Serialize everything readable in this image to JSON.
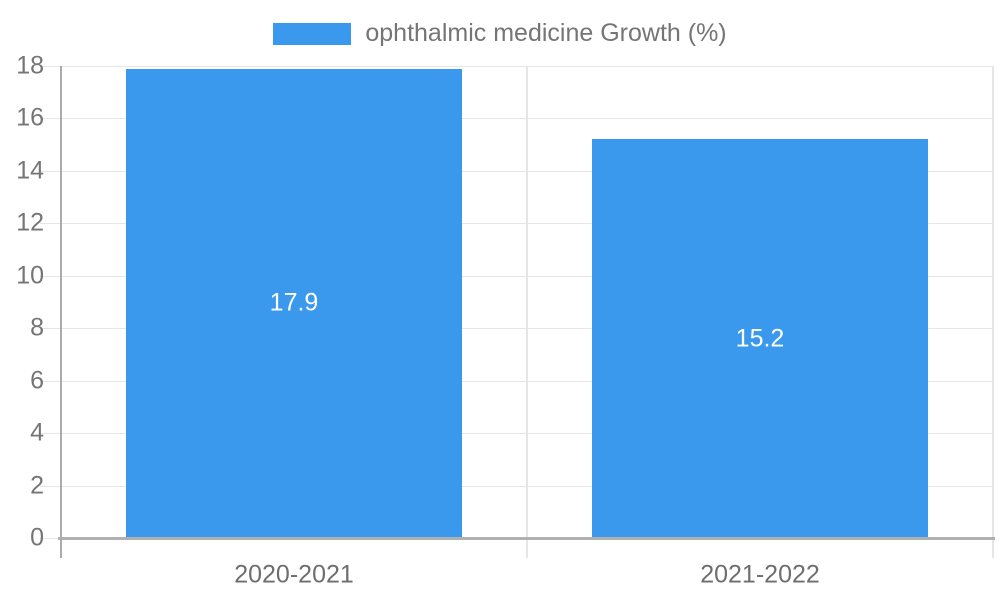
{
  "chart_data": {
    "type": "bar",
    "title": "",
    "legend": "ophthalmic medicine Growth (%)",
    "legend_position": "top-center",
    "categories": [
      "2020-2021",
      "2021-2022"
    ],
    "values": [
      17.9,
      15.2
    ],
    "bar_labels": [
      "17.9",
      "15.2"
    ],
    "xlabel": "",
    "ylabel": "",
    "ylim": [
      0,
      18
    ],
    "yticks": [
      0,
      2,
      4,
      6,
      8,
      10,
      12,
      14,
      16,
      18
    ],
    "grid": true,
    "colors": {
      "bar": "#3a99ed",
      "grid": "#e6e6e6",
      "axis": "#b0b0b0",
      "text": "#757575",
      "bar_label": "#ffffff"
    }
  }
}
